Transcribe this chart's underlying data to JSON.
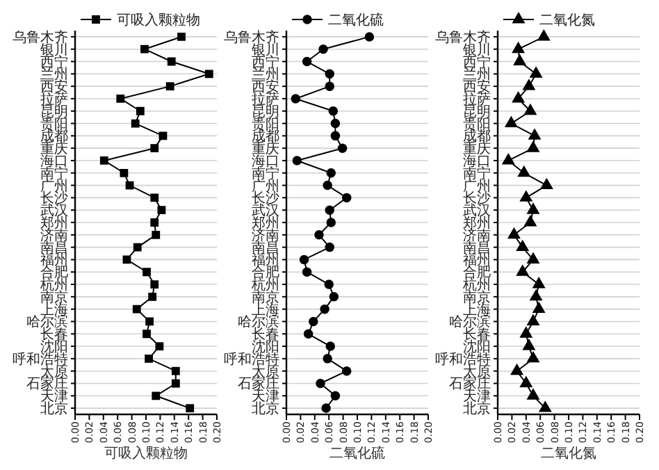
{
  "chart_data": [
    {
      "type": "line",
      "orientation": "horizontal",
      "xlabel": "可吸入颗粒物",
      "categories": [
        "乌鲁木齐",
        "银川",
        "西宁",
        "兰州",
        "西安",
        "拉萨",
        "昆明",
        "贵阳",
        "成都",
        "重庆",
        "海口",
        "南宁",
        "广州",
        "长沙",
        "武汉",
        "郑州",
        "济南",
        "南昌",
        "福州",
        "合肥",
        "杭州",
        "南京",
        "上海",
        "哈尔滨",
        "长春",
        "沈阳",
        "呼和浩特",
        "太原",
        "石家庄",
        "天津",
        "北京"
      ],
      "marker": "square",
      "legend": "top",
      "grid": "y",
      "xlim": [
        0,
        0.2
      ],
      "xticks": [
        {
          "value": 0,
          "label": "0.00"
        },
        {
          "value": 0.02,
          "label": "0.02"
        },
        {
          "value": 0.04,
          "label": "0.04"
        },
        {
          "value": 0.06,
          "label": "0.06"
        },
        {
          "value": 0.08,
          "label": "0.08"
        },
        {
          "value": 0.1,
          "label": "0.10"
        },
        {
          "value": 0.12,
          "label": "0.12"
        },
        {
          "value": 0.14,
          "label": "0.14"
        },
        {
          "value": 0.16,
          "label": "0.16"
        },
        {
          "value": 0.18,
          "label": "0.18"
        },
        {
          "value": 0.2,
          "label": "0.20"
        }
      ],
      "series": [
        {
          "name": "可吸入颗粒物",
          "color": "#000000",
          "values": [
            0.15,
            0.098,
            0.136,
            0.189,
            0.134,
            0.064,
            0.092,
            0.085,
            0.124,
            0.112,
            0.041,
            0.069,
            0.077,
            0.112,
            0.122,
            0.112,
            0.114,
            0.088,
            0.073,
            0.101,
            0.112,
            0.109,
            0.087,
            0.105,
            0.101,
            0.119,
            0.104,
            0.142,
            0.142,
            0.114,
            0.162
          ]
        }
      ]
    },
    {
      "type": "line",
      "orientation": "horizontal",
      "xlabel": "二氧化硫",
      "categories": [
        "乌鲁木齐",
        "银川",
        "西宁",
        "兰州",
        "西安",
        "拉萨",
        "昆明",
        "贵阳",
        "成都",
        "重庆",
        "海口",
        "南宁",
        "广州",
        "长沙",
        "武汉",
        "郑州",
        "济南",
        "南昌",
        "福州",
        "合肥",
        "杭州",
        "南京",
        "上海",
        "哈尔滨",
        "长春",
        "沈阳",
        "呼和浩特",
        "太原",
        "石家庄",
        "天津",
        "北京"
      ],
      "marker": "circle",
      "legend": "top",
      "grid": "y",
      "xlim": [
        0,
        0.2
      ],
      "xticks": [
        {
          "value": 0,
          "label": "0.00"
        },
        {
          "value": 0.02,
          "label": "0.02"
        },
        {
          "value": 0.04,
          "label": "0.04"
        },
        {
          "value": 0.06,
          "label": "0.06"
        },
        {
          "value": 0.08,
          "label": "0.08"
        },
        {
          "value": 0.1,
          "label": "0.10"
        },
        {
          "value": 0.12,
          "label": "0.12"
        },
        {
          "value": 0.14,
          "label": "0.14"
        },
        {
          "value": 0.16,
          "label": "0.16"
        },
        {
          "value": 0.18,
          "label": "0.18"
        },
        {
          "value": 0.2,
          "label": "0.20"
        }
      ],
      "series": [
        {
          "name": "二氧化硫",
          "color": "#000000",
          "values": [
            0.117,
            0.052,
            0.029,
            0.061,
            0.061,
            0.013,
            0.066,
            0.069,
            0.069,
            0.079,
            0.015,
            0.063,
            0.058,
            0.085,
            0.061,
            0.063,
            0.046,
            0.061,
            0.025,
            0.029,
            0.06,
            0.067,
            0.054,
            0.038,
            0.031,
            0.062,
            0.058,
            0.085,
            0.048,
            0.069,
            0.056
          ]
        }
      ]
    },
    {
      "type": "line",
      "orientation": "horizontal",
      "xlabel": "二氧化氮",
      "categories": [
        "乌鲁木齐",
        "银川",
        "西宁",
        "兰州",
        "西安",
        "拉萨",
        "昆明",
        "贵阳",
        "成都",
        "重庆",
        "海口",
        "南宁",
        "广州",
        "长沙",
        "武汉",
        "郑州",
        "济南",
        "南昌",
        "福州",
        "合肥",
        "杭州",
        "南京",
        "上海",
        "哈尔滨",
        "长春",
        "沈阳",
        "呼和浩特",
        "太原",
        "石家庄",
        "天津",
        "北京"
      ],
      "marker": "triangle",
      "legend": "top",
      "grid": "y",
      "xlim": [
        0,
        0.2
      ],
      "xticks": [
        {
          "value": 0,
          "label": "0.00"
        },
        {
          "value": 0.02,
          "label": "0.02"
        },
        {
          "value": 0.04,
          "label": "0.04"
        },
        {
          "value": 0.06,
          "label": "0.06"
        },
        {
          "value": 0.08,
          "label": "0.08"
        },
        {
          "value": 0.1,
          "label": "0.10"
        },
        {
          "value": 0.12,
          "label": "0.12"
        },
        {
          "value": 0.14,
          "label": "0.14"
        },
        {
          "value": 0.16,
          "label": "0.16"
        },
        {
          "value": 0.18,
          "label": "0.18"
        },
        {
          "value": 0.2,
          "label": "0.20"
        }
      ],
      "series": [
        {
          "name": "二氧化氮",
          "color": "#000000",
          "values": [
            0.065,
            0.029,
            0.031,
            0.054,
            0.044,
            0.029,
            0.046,
            0.019,
            0.052,
            0.05,
            0.015,
            0.037,
            0.069,
            0.04,
            0.05,
            0.046,
            0.023,
            0.035,
            0.05,
            0.035,
            0.058,
            0.054,
            0.058,
            0.05,
            0.04,
            0.044,
            0.05,
            0.027,
            0.04,
            0.05,
            0.067
          ]
        }
      ]
    }
  ]
}
